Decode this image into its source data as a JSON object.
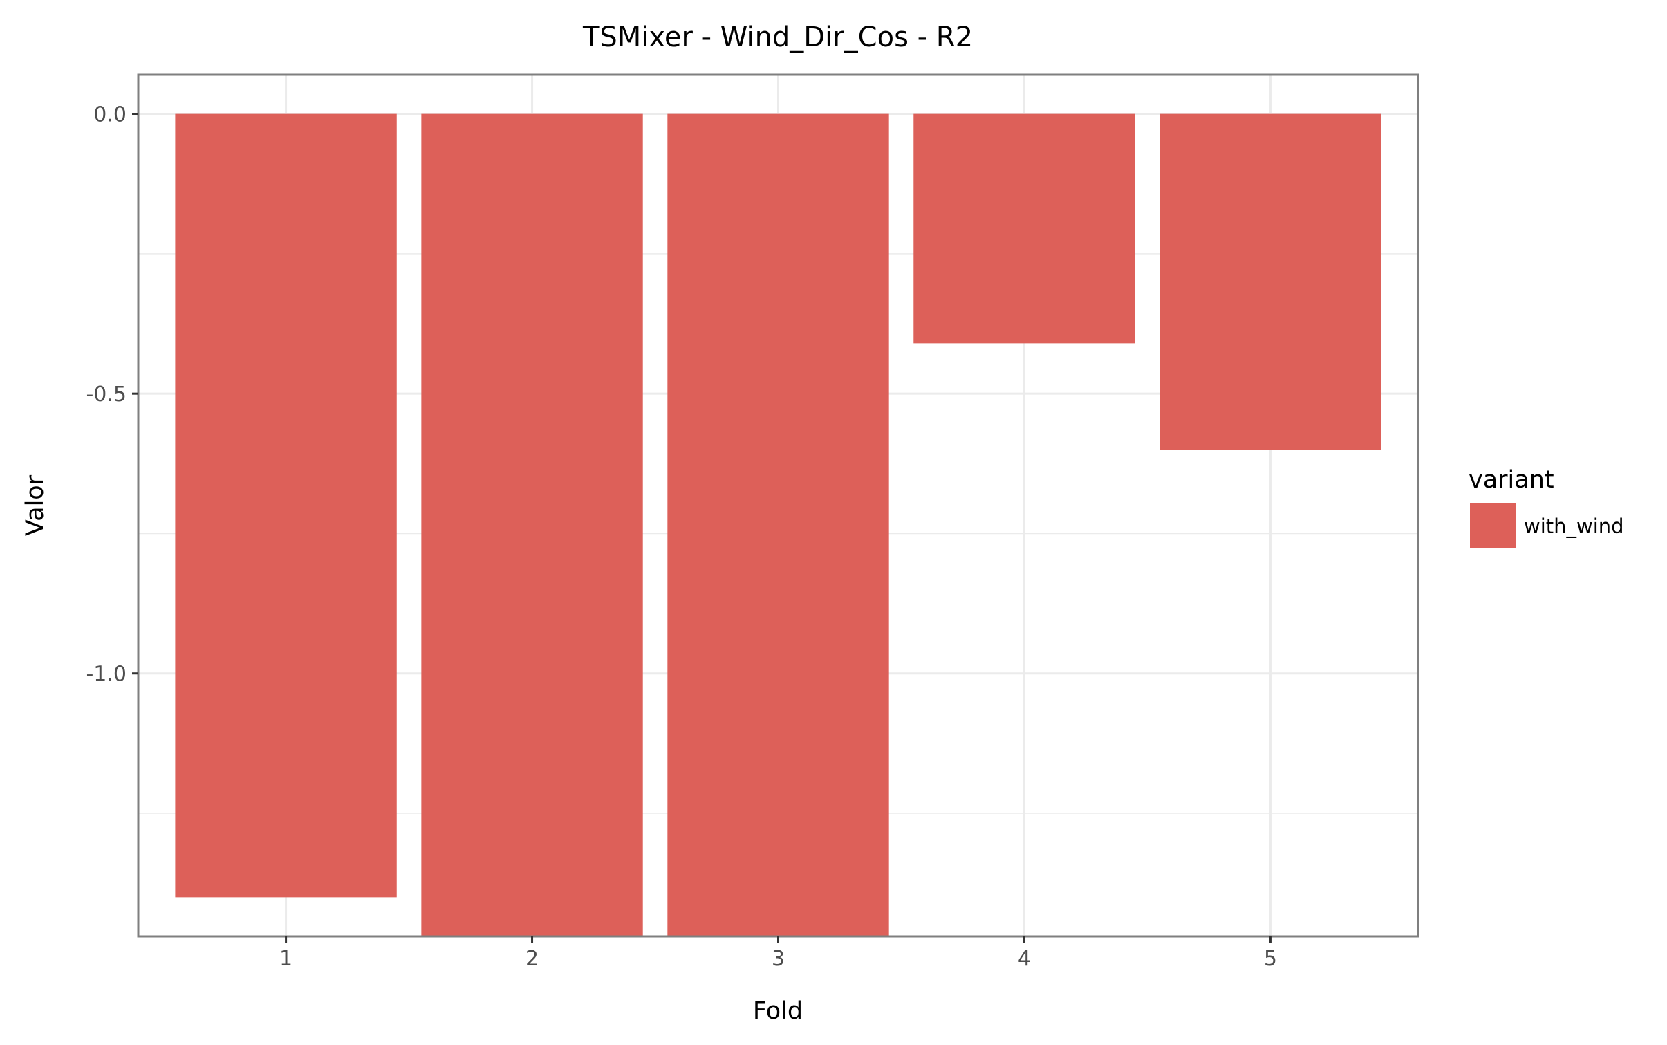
{
  "chart_data": {
    "type": "bar",
    "title": "TSMixer - Wind_Dir_Cos - R2",
    "xlabel": "Fold",
    "ylabel": "Valor",
    "categories": [
      "1",
      "2",
      "3",
      "4",
      "5"
    ],
    "series": [
      {
        "name": "with_wind",
        "values": [
          -1.4,
          -1.47,
          -1.47,
          -0.41,
          -0.6
        ]
      }
    ],
    "ylim": [
      -1.47,
      0.07
    ],
    "yticks": [
      0.0,
      -0.5,
      -1.0
    ],
    "ytick_labels": [
      "0.0",
      "-0.5",
      "-1.0"
    ],
    "legend": {
      "title": "variant",
      "position": "right"
    },
    "grid": true,
    "colors": {
      "bar": "#dd6059",
      "grid": "#ebebeb",
      "panel_border": "#7f7f7f"
    }
  }
}
